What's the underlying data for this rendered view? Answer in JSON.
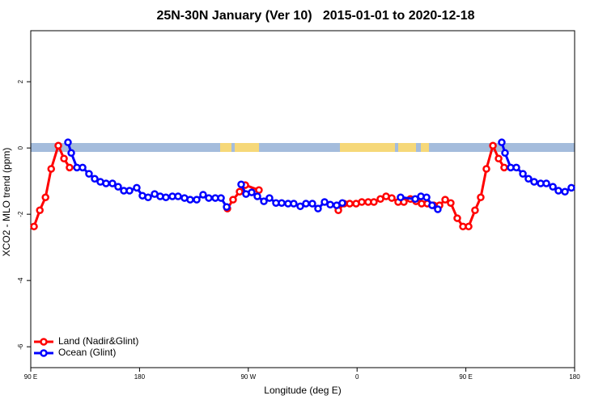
{
  "chart_data": {
    "type": "line",
    "title": "25N-30N January (Ver 10)   2015-01-01 to 2020-12-18",
    "x_label": "Longitude (deg E)",
    "y_label": "XCO2 - MLO trend (ppm)",
    "xlim": [
      90,
      540
    ],
    "ylim": [
      -6.63,
      3.54
    ],
    "xticks": [
      {
        "value": 90,
        "label": "90 E"
      },
      {
        "value": 180,
        "label": "180"
      },
      {
        "value": 270,
        "label": "90 W"
      },
      {
        "value": 360,
        "label": "0"
      },
      {
        "value": 450,
        "label": "90 E"
      },
      {
        "value": 540,
        "label": "180"
      }
    ],
    "yticks": [
      2,
      0,
      -2,
      -4,
      -6
    ],
    "legend": "bottom-left",
    "series": [
      {
        "name": "Land (Nadir&Glint)",
        "color": "#ff0000",
        "x": [
          92.7,
          97.5,
          102.2,
          106.9,
          112.8,
          117.5,
          122.1,
          187.0,
          252.7,
          257.4,
          262.8,
          267.5,
          278.8,
          310.0,
          344.5,
          349.2,
          353.9,
          359.2,
          363.9,
          369.2,
          373.9,
          379.3,
          384.0,
          388.7,
          394.0,
          398.7,
          404.1,
          408.8,
          413.4,
          418.1,
          423.5,
          428.2,
          432.9,
          437.5,
          442.9,
          447.6,
          452.3,
          457.6,
          462.3,
          467.0,
          472.4,
          477.1,
          481.7
        ],
        "values": [
          -2.37,
          -1.88,
          -1.49,
          -0.63,
          0.07,
          -0.32,
          -0.59,
          null,
          -1.83,
          -1.56,
          -1.32,
          -1.12,
          -1.27,
          null,
          -1.88,
          -1.68,
          -1.68,
          -1.68,
          -1.63,
          -1.63,
          -1.63,
          -1.54,
          -1.46,
          -1.51,
          -1.63,
          -1.63,
          -1.54,
          -1.61,
          -1.68,
          -1.68,
          -1.73,
          -1.73,
          -1.56,
          -1.66,
          -2.12,
          -2.37,
          -2.37,
          -1.88,
          -1.49,
          -0.63,
          0.07,
          -0.32,
          -0.59
        ]
      },
      {
        "name": "Ocean (Glint)",
        "color": "#0000ff",
        "x": [
          120.8,
          123.5,
          128.2,
          132.9,
          138.2,
          142.9,
          147.6,
          152.3,
          157.6,
          162.3,
          167.0,
          171.7,
          177.7,
          182.4,
          187.1,
          192.5,
          197.1,
          201.8,
          207.2,
          211.9,
          217.2,
          221.9,
          227.3,
          232.6,
          237.3,
          242.7,
          247.4,
          252.1,
          258.0,
          264.1,
          268.1,
          272.8,
          277.5,
          282.9,
          287.5,
          292.9,
          297.6,
          302.9,
          307.6,
          313.0,
          317.7,
          323.0,
          327.7,
          333.1,
          337.8,
          343.1,
          347.8,
          372.0,
          396.0,
          408.1,
          412.8,
          417.5,
          422.1,
          426.8,
          453.0,
          479.7,
          482.4,
          487.1,
          491.8,
          497.2,
          501.8,
          506.5,
          511.9,
          516.6,
          522.0,
          526.6,
          532.0,
          537.3
        ],
        "values": [
          0.17,
          -0.15,
          -0.59,
          -0.59,
          -0.78,
          -0.93,
          -1.02,
          -1.07,
          -1.07,
          -1.17,
          -1.29,
          -1.29,
          -1.2,
          -1.44,
          -1.49,
          -1.39,
          -1.46,
          -1.49,
          -1.46,
          -1.46,
          -1.51,
          -1.56,
          -1.56,
          -1.41,
          -1.51,
          -1.51,
          -1.51,
          -1.78,
          null,
          -1.1,
          -1.39,
          -1.34,
          -1.46,
          -1.61,
          -1.51,
          -1.66,
          -1.66,
          -1.68,
          -1.68,
          -1.76,
          -1.68,
          -1.68,
          -1.83,
          -1.63,
          -1.71,
          -1.73,
          -1.66,
          null,
          -1.49,
          -1.54,
          -1.46,
          -1.49,
          -1.73,
          -1.85,
          null,
          0.17,
          -0.15,
          -0.59,
          -0.59,
          -0.78,
          -0.93,
          -1.02,
          -1.07,
          -1.07,
          -1.17,
          -1.29,
          -1.32,
          -1.2
        ]
      }
    ]
  }
}
